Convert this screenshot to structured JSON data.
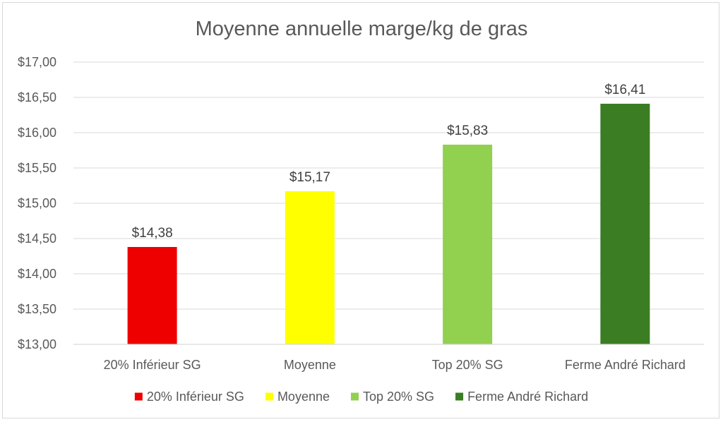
{
  "chart_data": {
    "type": "bar",
    "title": "Moyenne annuelle marge/kg de gras",
    "xlabel": "",
    "ylabel": "",
    "categories": [
      "20% Inférieur SG",
      "Moyenne",
      "Top 20% SG",
      "Ferme André Richard"
    ],
    "values": [
      14.38,
      15.17,
      15.83,
      16.41
    ],
    "data_labels": [
      "$14,38",
      "$15,17",
      "$15,83",
      "$16,41"
    ],
    "colors": [
      "#ee0000",
      "#ffff00",
      "#92d050",
      "#3b7d23"
    ],
    "ylim": [
      13.0,
      17.0
    ],
    "y_ticks": [
      13.0,
      13.5,
      14.0,
      14.5,
      15.0,
      15.5,
      16.0,
      16.5,
      17.0
    ],
    "y_tick_labels": [
      "$13,00",
      "$13,50",
      "$14,00",
      "$14,50",
      "$15,00",
      "$15,50",
      "$16,00",
      "$16,50",
      "$17,00"
    ],
    "grid": true,
    "legend_position": "bottom",
    "legend": [
      "20% Inférieur SG",
      "Moyenne",
      "Top 20% SG",
      "Ferme André Richard"
    ]
  }
}
